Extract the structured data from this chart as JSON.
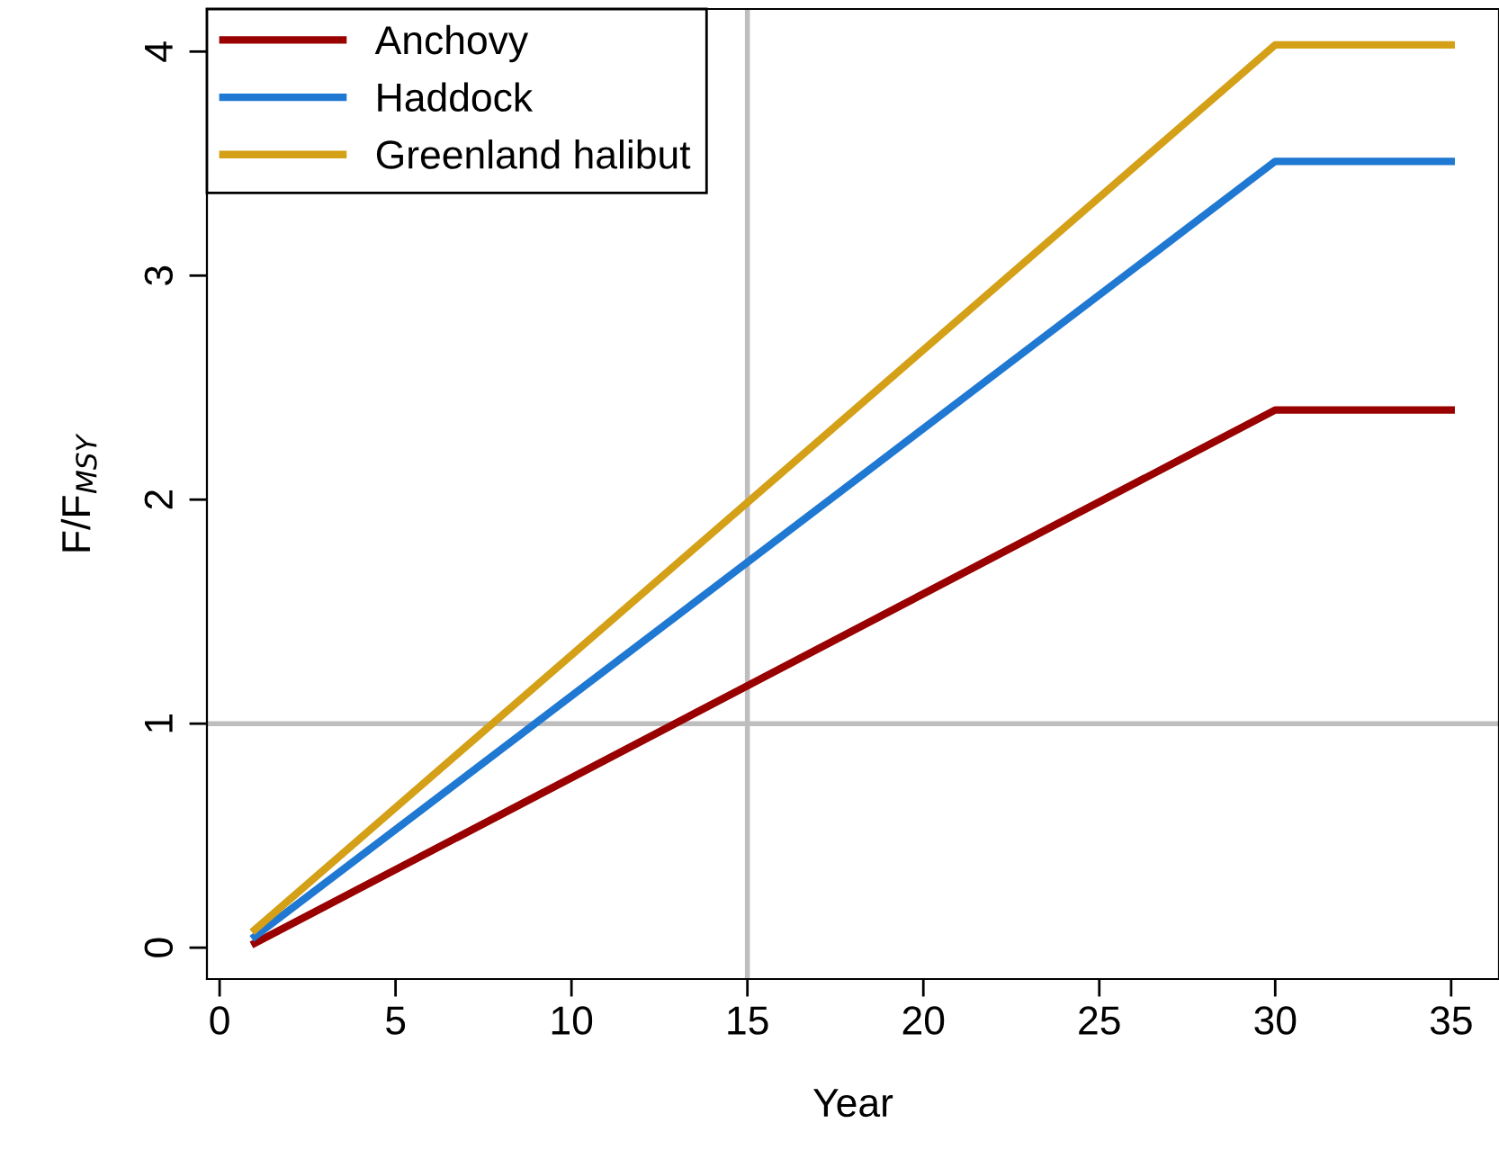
{
  "chart_data": {
    "type": "line",
    "xlabel": "Year",
    "ylabel": "F/F$_{MSY}$",
    "x": [
      1,
      30,
      35
    ],
    "series": [
      {
        "name": "Anchovy",
        "color": "#990000",
        "values": [
          0.02,
          2.4,
          2.4
        ]
      },
      {
        "name": "Haddock",
        "color": "#1f78d1",
        "values": [
          0.05,
          3.51,
          3.51
        ]
      },
      {
        "name": "Greenland halibut",
        "color": "#d4a017",
        "values": [
          0.08,
          4.03,
          4.03
        ]
      }
    ],
    "xlim": [
      -0.36,
      36.36
    ],
    "ylim": [
      -0.14,
      4.19
    ],
    "xticks": [
      0,
      5,
      10,
      15,
      20,
      25,
      30,
      35
    ],
    "yticks": [
      0,
      1,
      2,
      3,
      4
    ],
    "ref_lines": [
      {
        "axis": "y",
        "value": 1,
        "color": "#bebebe"
      },
      {
        "axis": "x",
        "value": 15,
        "color": "#bebebe"
      }
    ],
    "legend": "top left",
    "grid": false,
    "marker": "none",
    "line_style": "solid"
  }
}
